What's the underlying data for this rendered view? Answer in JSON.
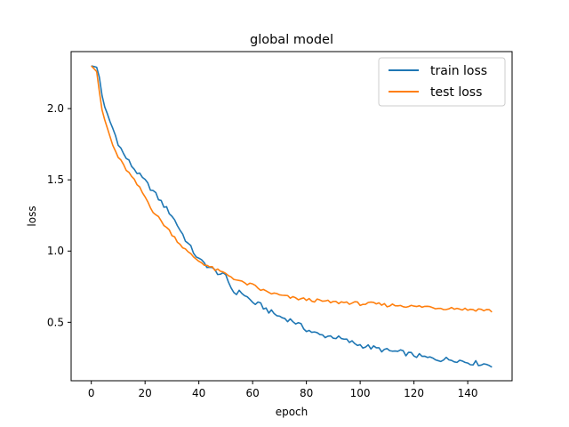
{
  "chart_data": {
    "type": "line",
    "title": "global model",
    "xlabel": "epoch",
    "ylabel": "loss",
    "xlim": [
      -7.5,
      156.5
    ],
    "ylim": [
      0.09,
      2.4
    ],
    "xticks": [
      0,
      20,
      40,
      60,
      80,
      100,
      120,
      140
    ],
    "yticks": [
      0.5,
      1.0,
      1.5,
      2.0
    ],
    "xtick_labels": [
      "0",
      "20",
      "40",
      "60",
      "80",
      "100",
      "120",
      "140"
    ],
    "ytick_labels": [
      "0.5",
      "1.0",
      "1.5",
      "2.0"
    ],
    "grid": false,
    "legend_position": "top-right",
    "series": [
      {
        "name": "train loss",
        "color": "#1f77b4",
        "keypoints": [
          [
            0,
            2.3
          ],
          [
            2,
            2.29
          ],
          [
            3,
            2.22
          ],
          [
            4,
            2.1
          ],
          [
            5,
            2.0
          ],
          [
            8,
            1.86
          ],
          [
            10,
            1.76
          ],
          [
            12,
            1.68
          ],
          [
            15,
            1.6
          ],
          [
            18,
            1.53
          ],
          [
            20,
            1.49
          ],
          [
            23,
            1.42
          ],
          [
            27,
            1.32
          ],
          [
            30,
            1.25
          ],
          [
            33,
            1.15
          ],
          [
            36,
            1.05
          ],
          [
            40,
            0.94
          ],
          [
            43,
            0.9
          ],
          [
            46,
            0.86
          ],
          [
            50,
            0.82
          ],
          [
            53,
            0.71
          ],
          [
            56,
            0.71
          ],
          [
            60,
            0.64
          ],
          [
            63,
            0.62
          ],
          [
            66,
            0.58
          ],
          [
            70,
            0.54
          ],
          [
            75,
            0.51
          ],
          [
            80,
            0.45
          ],
          [
            85,
            0.41
          ],
          [
            90,
            0.4
          ],
          [
            95,
            0.37
          ],
          [
            100,
            0.34
          ],
          [
            105,
            0.32
          ],
          [
            110,
            0.3
          ],
          [
            115,
            0.29
          ],
          [
            120,
            0.27
          ],
          [
            125,
            0.25
          ],
          [
            130,
            0.24
          ],
          [
            135,
            0.24
          ],
          [
            140,
            0.22
          ],
          [
            145,
            0.21
          ],
          [
            149,
            0.2
          ]
        ],
        "noise": 0.018
      },
      {
        "name": "test loss",
        "color": "#ff7f0e",
        "keypoints": [
          [
            0,
            2.3
          ],
          [
            2,
            2.26
          ],
          [
            3,
            2.12
          ],
          [
            4,
            1.98
          ],
          [
            6,
            1.86
          ],
          [
            8,
            1.74
          ],
          [
            10,
            1.66
          ],
          [
            12,
            1.6
          ],
          [
            15,
            1.52
          ],
          [
            18,
            1.44
          ],
          [
            20,
            1.38
          ],
          [
            23,
            1.28
          ],
          [
            26,
            1.21
          ],
          [
            30,
            1.12
          ],
          [
            33,
            1.05
          ],
          [
            36,
            0.99
          ],
          [
            40,
            0.93
          ],
          [
            43,
            0.9
          ],
          [
            46,
            0.87
          ],
          [
            50,
            0.84
          ],
          [
            53,
            0.81
          ],
          [
            56,
            0.78
          ],
          [
            60,
            0.76
          ],
          [
            63,
            0.73
          ],
          [
            66,
            0.71
          ],
          [
            70,
            0.69
          ],
          [
            75,
            0.67
          ],
          [
            80,
            0.66
          ],
          [
            85,
            0.65
          ],
          [
            90,
            0.64
          ],
          [
            95,
            0.64
          ],
          [
            100,
            0.63
          ],
          [
            105,
            0.63
          ],
          [
            110,
            0.62
          ],
          [
            115,
            0.62
          ],
          [
            120,
            0.61
          ],
          [
            125,
            0.61
          ],
          [
            130,
            0.6
          ],
          [
            135,
            0.6
          ],
          [
            140,
            0.59
          ],
          [
            145,
            0.59
          ],
          [
            149,
            0.58
          ]
        ],
        "noise": 0.012
      }
    ]
  }
}
